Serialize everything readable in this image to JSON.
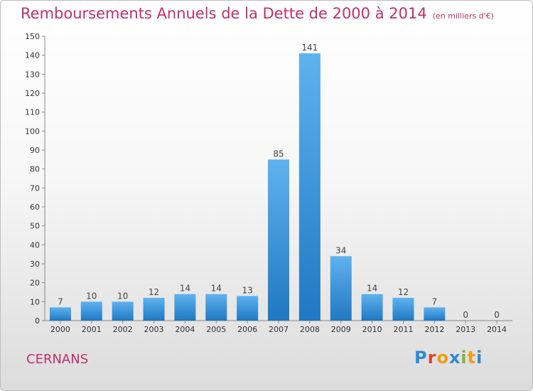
{
  "title": "Remboursements Annuels de la Dette de 2000 à 2014",
  "unit": "(en milliers d'€)",
  "place": "CERNANS",
  "logo": {
    "text": "Proxiti",
    "letters": [
      "P",
      "r",
      "o",
      "x",
      "i",
      "t",
      "i"
    ],
    "colors": [
      "#2e8bd3",
      "#e2412b",
      "#f39c12",
      "#2e8bd3",
      "#7cb342",
      "#f39c12",
      "#2e8bd3"
    ]
  },
  "chart_data": {
    "type": "bar",
    "categories": [
      "2000",
      "2001",
      "2002",
      "2003",
      "2004",
      "2005",
      "2006",
      "2007",
      "2008",
      "2009",
      "2010",
      "2011",
      "2012",
      "2013",
      "2014"
    ],
    "values": [
      7,
      10,
      10,
      12,
      14,
      14,
      13,
      85,
      141,
      34,
      14,
      12,
      7,
      0,
      0
    ],
    "ylim": [
      0,
      150
    ],
    "yticks": [
      0,
      10,
      20,
      30,
      40,
      50,
      60,
      70,
      80,
      90,
      100,
      110,
      120,
      130,
      140,
      150
    ],
    "grid": false,
    "bar_color": "#3a95dc"
  }
}
